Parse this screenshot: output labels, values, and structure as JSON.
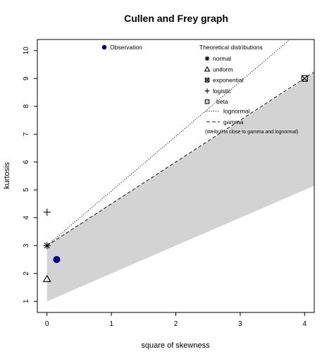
{
  "chart_data": {
    "type": "scatter",
    "title": "Cullen and Frey graph",
    "xlabel": "square of skewness",
    "ylabel": "kurtosis",
    "xlim": [
      -0.15,
      4.15
    ],
    "ylim": [
      10.4,
      0.6
    ],
    "y_axis_reversed": true,
    "x_ticks": [
      "0",
      "1",
      "2",
      "3",
      "4"
    ],
    "y_ticks": [
      "1",
      "2",
      "3",
      "4",
      "5",
      "6",
      "7",
      "8",
      "9",
      "10"
    ],
    "observation": {
      "label": "Observation",
      "x": 0.15,
      "y": 2.5,
      "color": "#00008b"
    },
    "beta_region": {
      "label": "beta",
      "color": "#d3d3d3",
      "upper": [
        [
          0,
          1.0
        ],
        [
          4.15,
          5.15
        ]
      ],
      "lower": [
        [
          0,
          3.0
        ],
        [
          4.15,
          9.2
        ]
      ]
    },
    "theoretical_points": [
      {
        "label": "normal",
        "marker": "asterisk",
        "x": 0,
        "y": 3.0
      },
      {
        "label": "uniform",
        "marker": "triangle",
        "x": 0,
        "y": 1.8
      },
      {
        "label": "exponential",
        "marker": "boxed-x",
        "x": 4,
        "y": 9.0
      },
      {
        "label": "logistic",
        "marker": "plus",
        "x": 0,
        "y": 4.2
      }
    ],
    "lines": [
      {
        "label": "lognormal",
        "style": "dotted",
        "points": [
          [
            0,
            3.0
          ],
          [
            3.77,
            10.4
          ]
        ]
      },
      {
        "label": "gamma",
        "style": "dashed",
        "points": [
          [
            0,
            3.0
          ],
          [
            4.15,
            9.23
          ]
        ]
      }
    ],
    "legend_observation_title": "Observation",
    "legend_title": "Theoretical distributions",
    "legend_note": "(Weibull is close to gamma and lognormal)",
    "legend_position": "top-right"
  }
}
